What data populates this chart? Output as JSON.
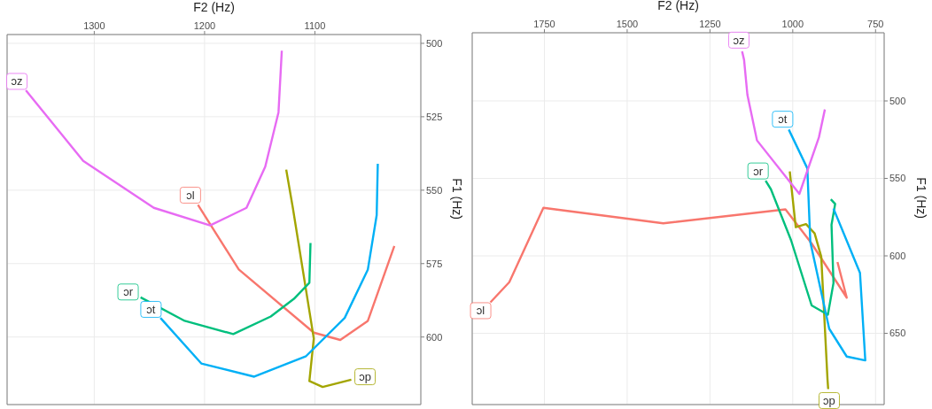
{
  "chart_data": [
    {
      "type": "line",
      "xlabel": "F2 (Hz)",
      "ylabel": "F1 (Hz)",
      "xlim": [
        1379,
        1004
      ],
      "xticks": [
        1300,
        1200,
        1100
      ],
      "ylim": [
        623,
        497
      ],
      "yticks": [
        500,
        525,
        550,
        575,
        600
      ],
      "grid": true,
      "legend": false,
      "marker": "none",
      "line_style": "solid",
      "series": [
        {
          "name": "ɔl",
          "color": "#f8766d",
          "x": [
            1206,
            1169,
            1101,
            1077,
            1052,
            1028
          ],
          "values": [
            555,
            577,
            598.5,
            601,
            594.5,
            569
          ]
        },
        {
          "name": "ɔp",
          "color": "#a3a500",
          "x": [
            1067,
            1093,
            1105,
            1101,
            1120,
            1126
          ],
          "values": [
            614.5,
            617,
            615,
            600.5,
            556,
            543
          ]
        },
        {
          "name": "ɔr",
          "color": "#00bf7d",
          "x": [
            1258,
            1218,
            1174,
            1140,
            1119,
            1105,
            1104
          ],
          "values": [
            586.5,
            594.5,
            599,
            593,
            587,
            581.5,
            568
          ]
        },
        {
          "name": "ɔt",
          "color": "#00b0f6",
          "x": [
            1240,
            1203,
            1155,
            1108,
            1073,
            1052,
            1044,
            1043
          ],
          "values": [
            593.5,
            609,
            613.5,
            606.5,
            593.5,
            577,
            558.5,
            541
          ]
        },
        {
          "name": "ɔz",
          "color": "#e76bf3",
          "x": [
            1362,
            1310,
            1246,
            1195,
            1162,
            1145,
            1133,
            1130
          ],
          "values": [
            516,
            540,
            556,
            562,
            556,
            542,
            523.5,
            502.5
          ]
        }
      ]
    },
    {
      "type": "line",
      "xlabel": "F2 (Hz)",
      "ylabel": "F1 (Hz)",
      "xlim": [
        1968,
        724
      ],
      "xticks": [
        1750,
        1500,
        1250,
        1000,
        750
      ],
      "ylim": [
        696,
        456
      ],
      "yticks": [
        500,
        550,
        600,
        650
      ],
      "grid": true,
      "legend": false,
      "marker": "none",
      "line_style": "solid",
      "series": [
        {
          "name": "ɔl",
          "color": "#f8766d",
          "x": [
            1913,
            1856,
            1753,
            1391,
            1022,
            943,
            837,
            865
          ],
          "values": [
            630,
            617,
            569,
            579,
            570,
            592,
            627,
            604
          ]
        },
        {
          "name": "ɔp",
          "color": "#a3a500",
          "x": [
            893,
            895,
            914,
            934,
            960,
            991,
            1009
          ],
          "values": [
            686,
            680,
            600.5,
            585.5,
            579.5,
            581.5,
            545.5
          ]
        },
        {
          "name": "ɔr",
          "color": "#00bf7d",
          "x": [
            1082,
            1066,
            1005,
            943,
            894,
            877,
            883,
            872,
            885
          ],
          "values": [
            551.5,
            557,
            590,
            632,
            638,
            617.5,
            580,
            566.5,
            563.5
          ]
        },
        {
          "name": "ɔt",
          "color": "#00b0f6",
          "x": [
            1012,
            956,
            947,
            890,
            837,
            781,
            797,
            877
          ],
          "values": [
            518.5,
            543.5,
            591,
            647,
            665,
            667.5,
            611,
            569.5
          ]
        },
        {
          "name": "ɔz",
          "color": "#e76bf3",
          "x": [
            1153,
            1147,
            1137,
            1108,
            980,
            921,
            903
          ],
          "values": [
            468,
            473.5,
            496,
            525.5,
            560,
            523.5,
            505.5
          ]
        }
      ]
    }
  ]
}
